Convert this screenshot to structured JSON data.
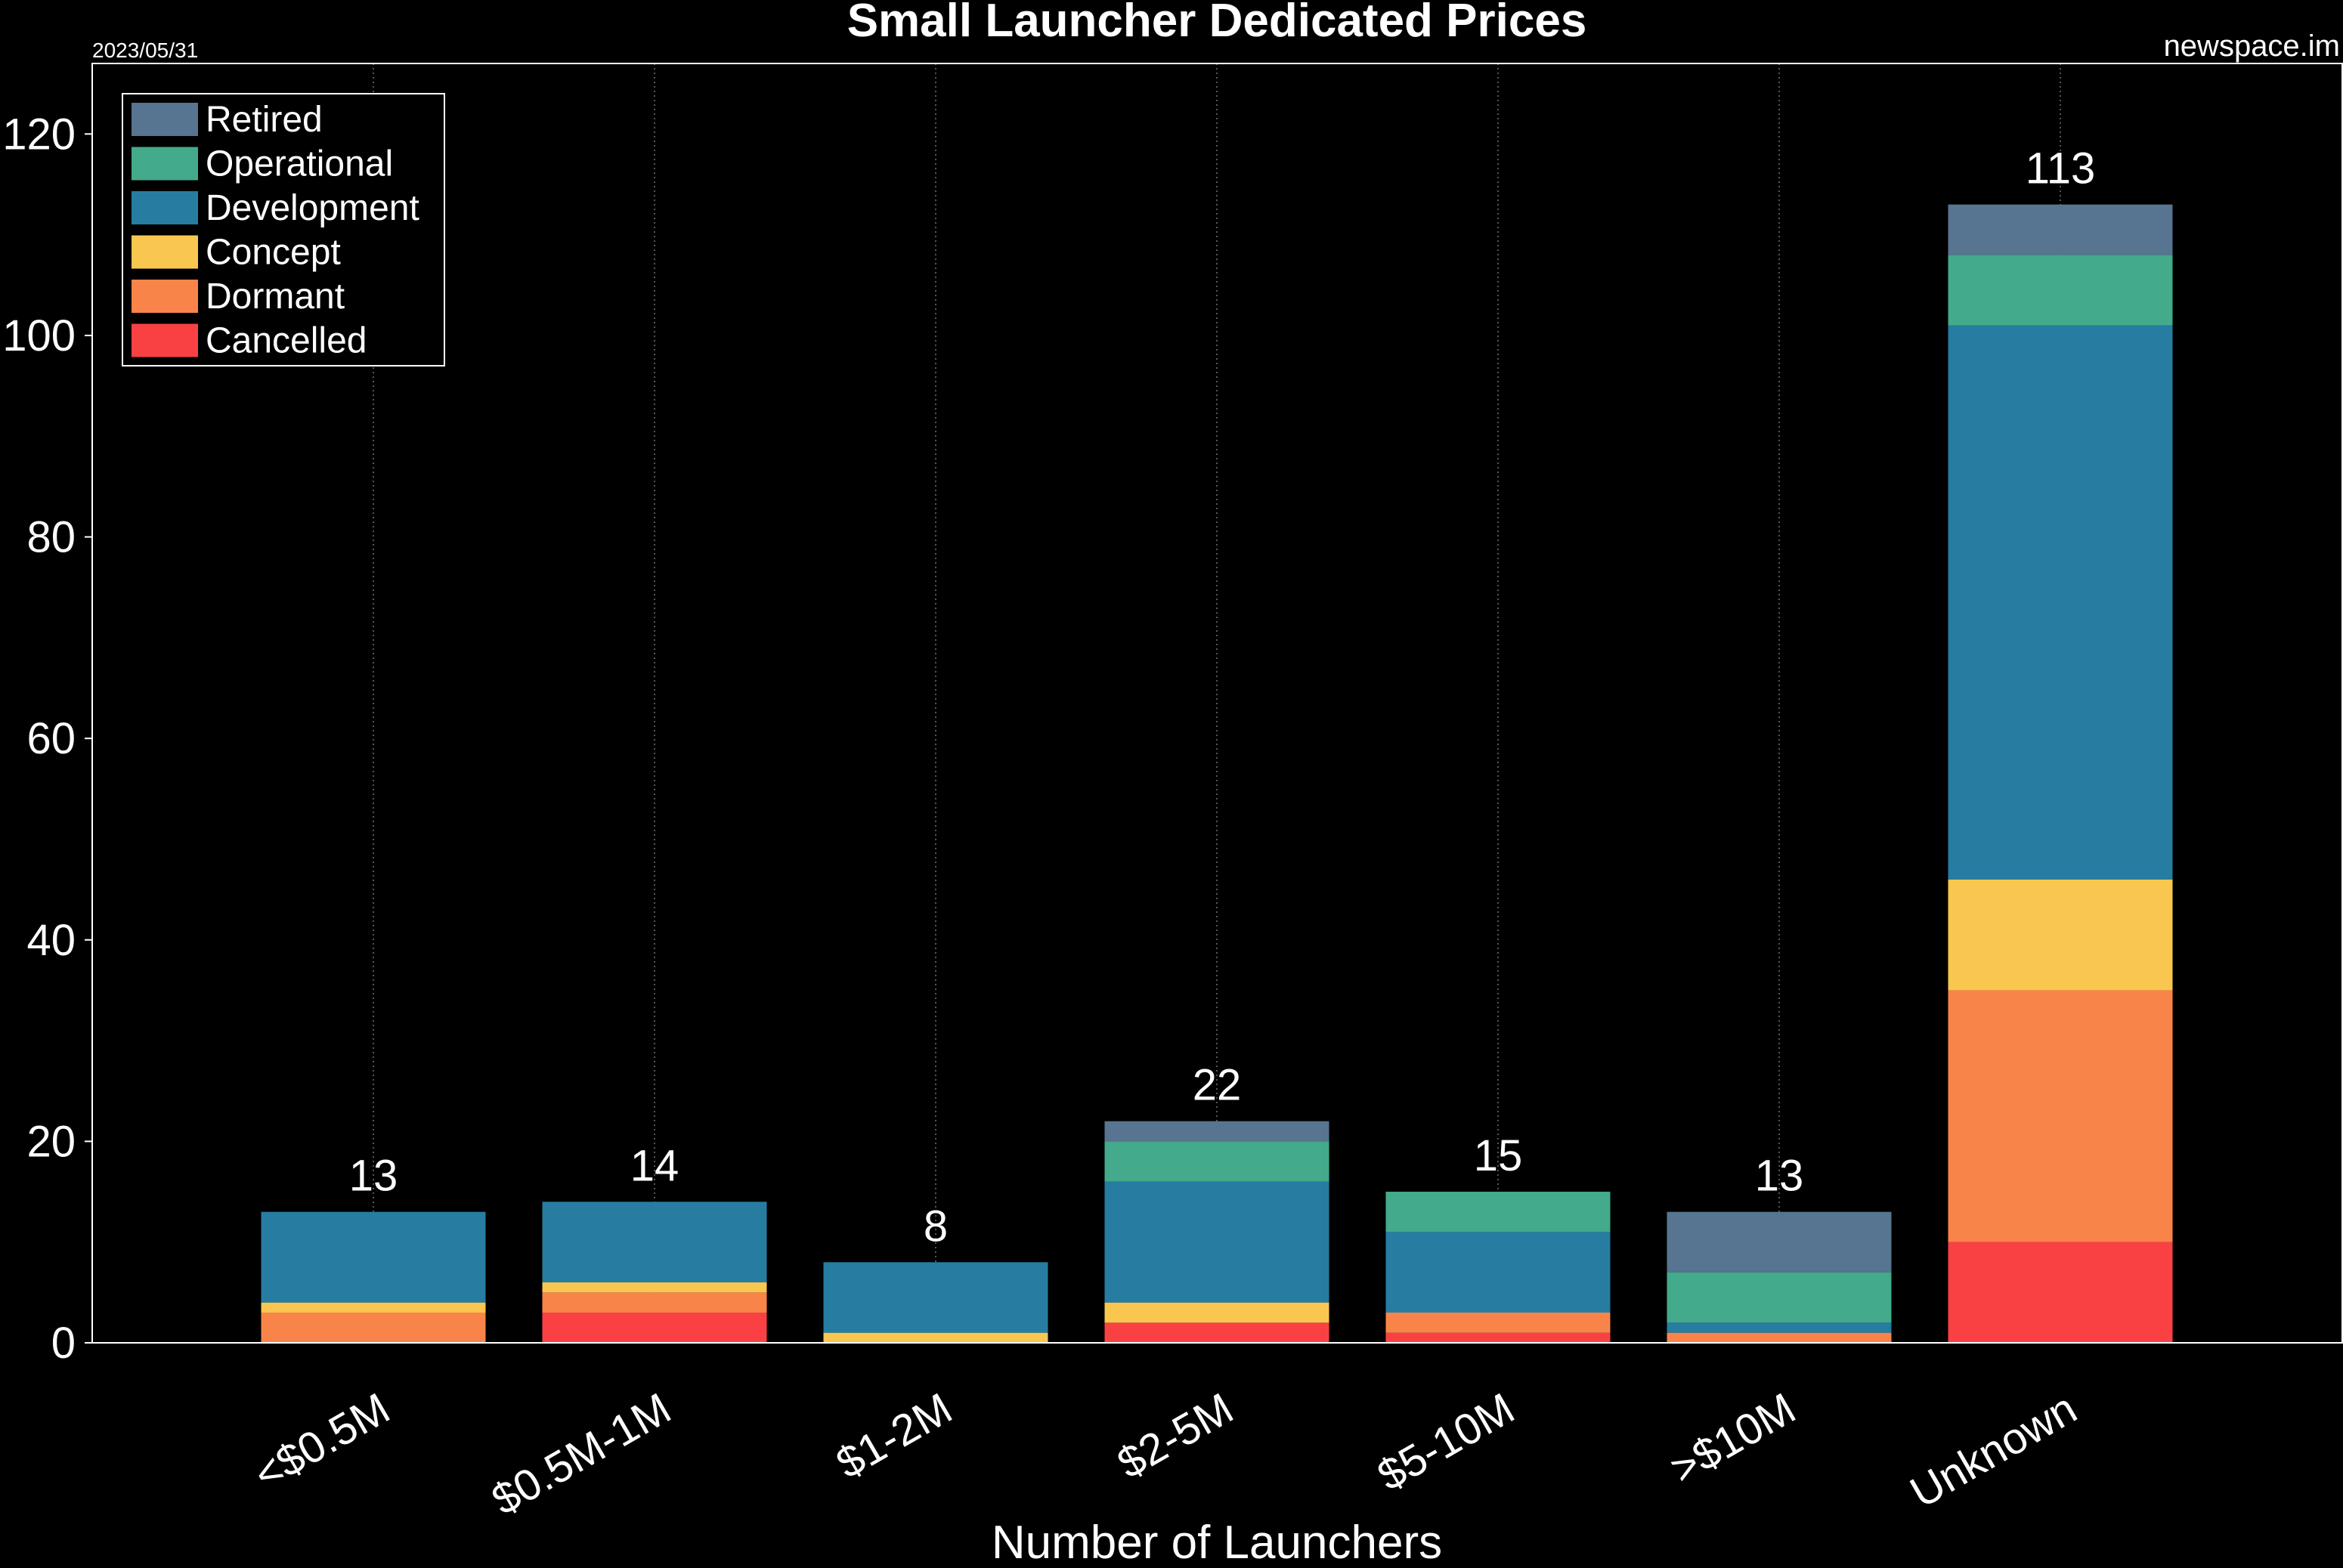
{
  "header": {
    "date": "2023/05/31",
    "source": "newspace.im"
  },
  "chart_data": {
    "type": "bar",
    "stacked": true,
    "title": "Small Launcher Dedicated Prices",
    "xlabel": "Number of Launchers",
    "ylabel": "",
    "ylim": [
      0,
      127
    ],
    "yticks": [
      0,
      20,
      40,
      60,
      80,
      100,
      120
    ],
    "grid": "vertical dotted",
    "legend_position": "top-left",
    "categories": [
      "<$0.5M",
      "$0.5M-1M",
      "$1-2M",
      "$2-5M",
      "$5-10M",
      ">$10M",
      "Unknown"
    ],
    "totals": [
      13,
      14,
      8,
      22,
      15,
      13,
      113
    ],
    "series": [
      {
        "name": "Cancelled",
        "color": "#f94144",
        "values": [
          0,
          3,
          0,
          2,
          1,
          0,
          10
        ]
      },
      {
        "name": "Dormant",
        "color": "#f9844a",
        "values": [
          3,
          2,
          0,
          0,
          2,
          1,
          25
        ]
      },
      {
        "name": "Concept",
        "color": "#f9c74f",
        "values": [
          1,
          1,
          1,
          2,
          0,
          0,
          11
        ]
      },
      {
        "name": "Development",
        "color": "#277da1",
        "values": [
          9,
          8,
          7,
          12,
          8,
          1,
          55
        ]
      },
      {
        "name": "Operational",
        "color": "#43aa8b",
        "values": [
          0,
          0,
          0,
          4,
          4,
          5,
          7
        ]
      },
      {
        "name": "Retired",
        "color": "#577590",
        "values": [
          0,
          0,
          0,
          2,
          0,
          6,
          5
        ]
      }
    ],
    "legend_order": [
      "Retired",
      "Operational",
      "Development",
      "Concept",
      "Dormant",
      "Cancelled"
    ]
  }
}
